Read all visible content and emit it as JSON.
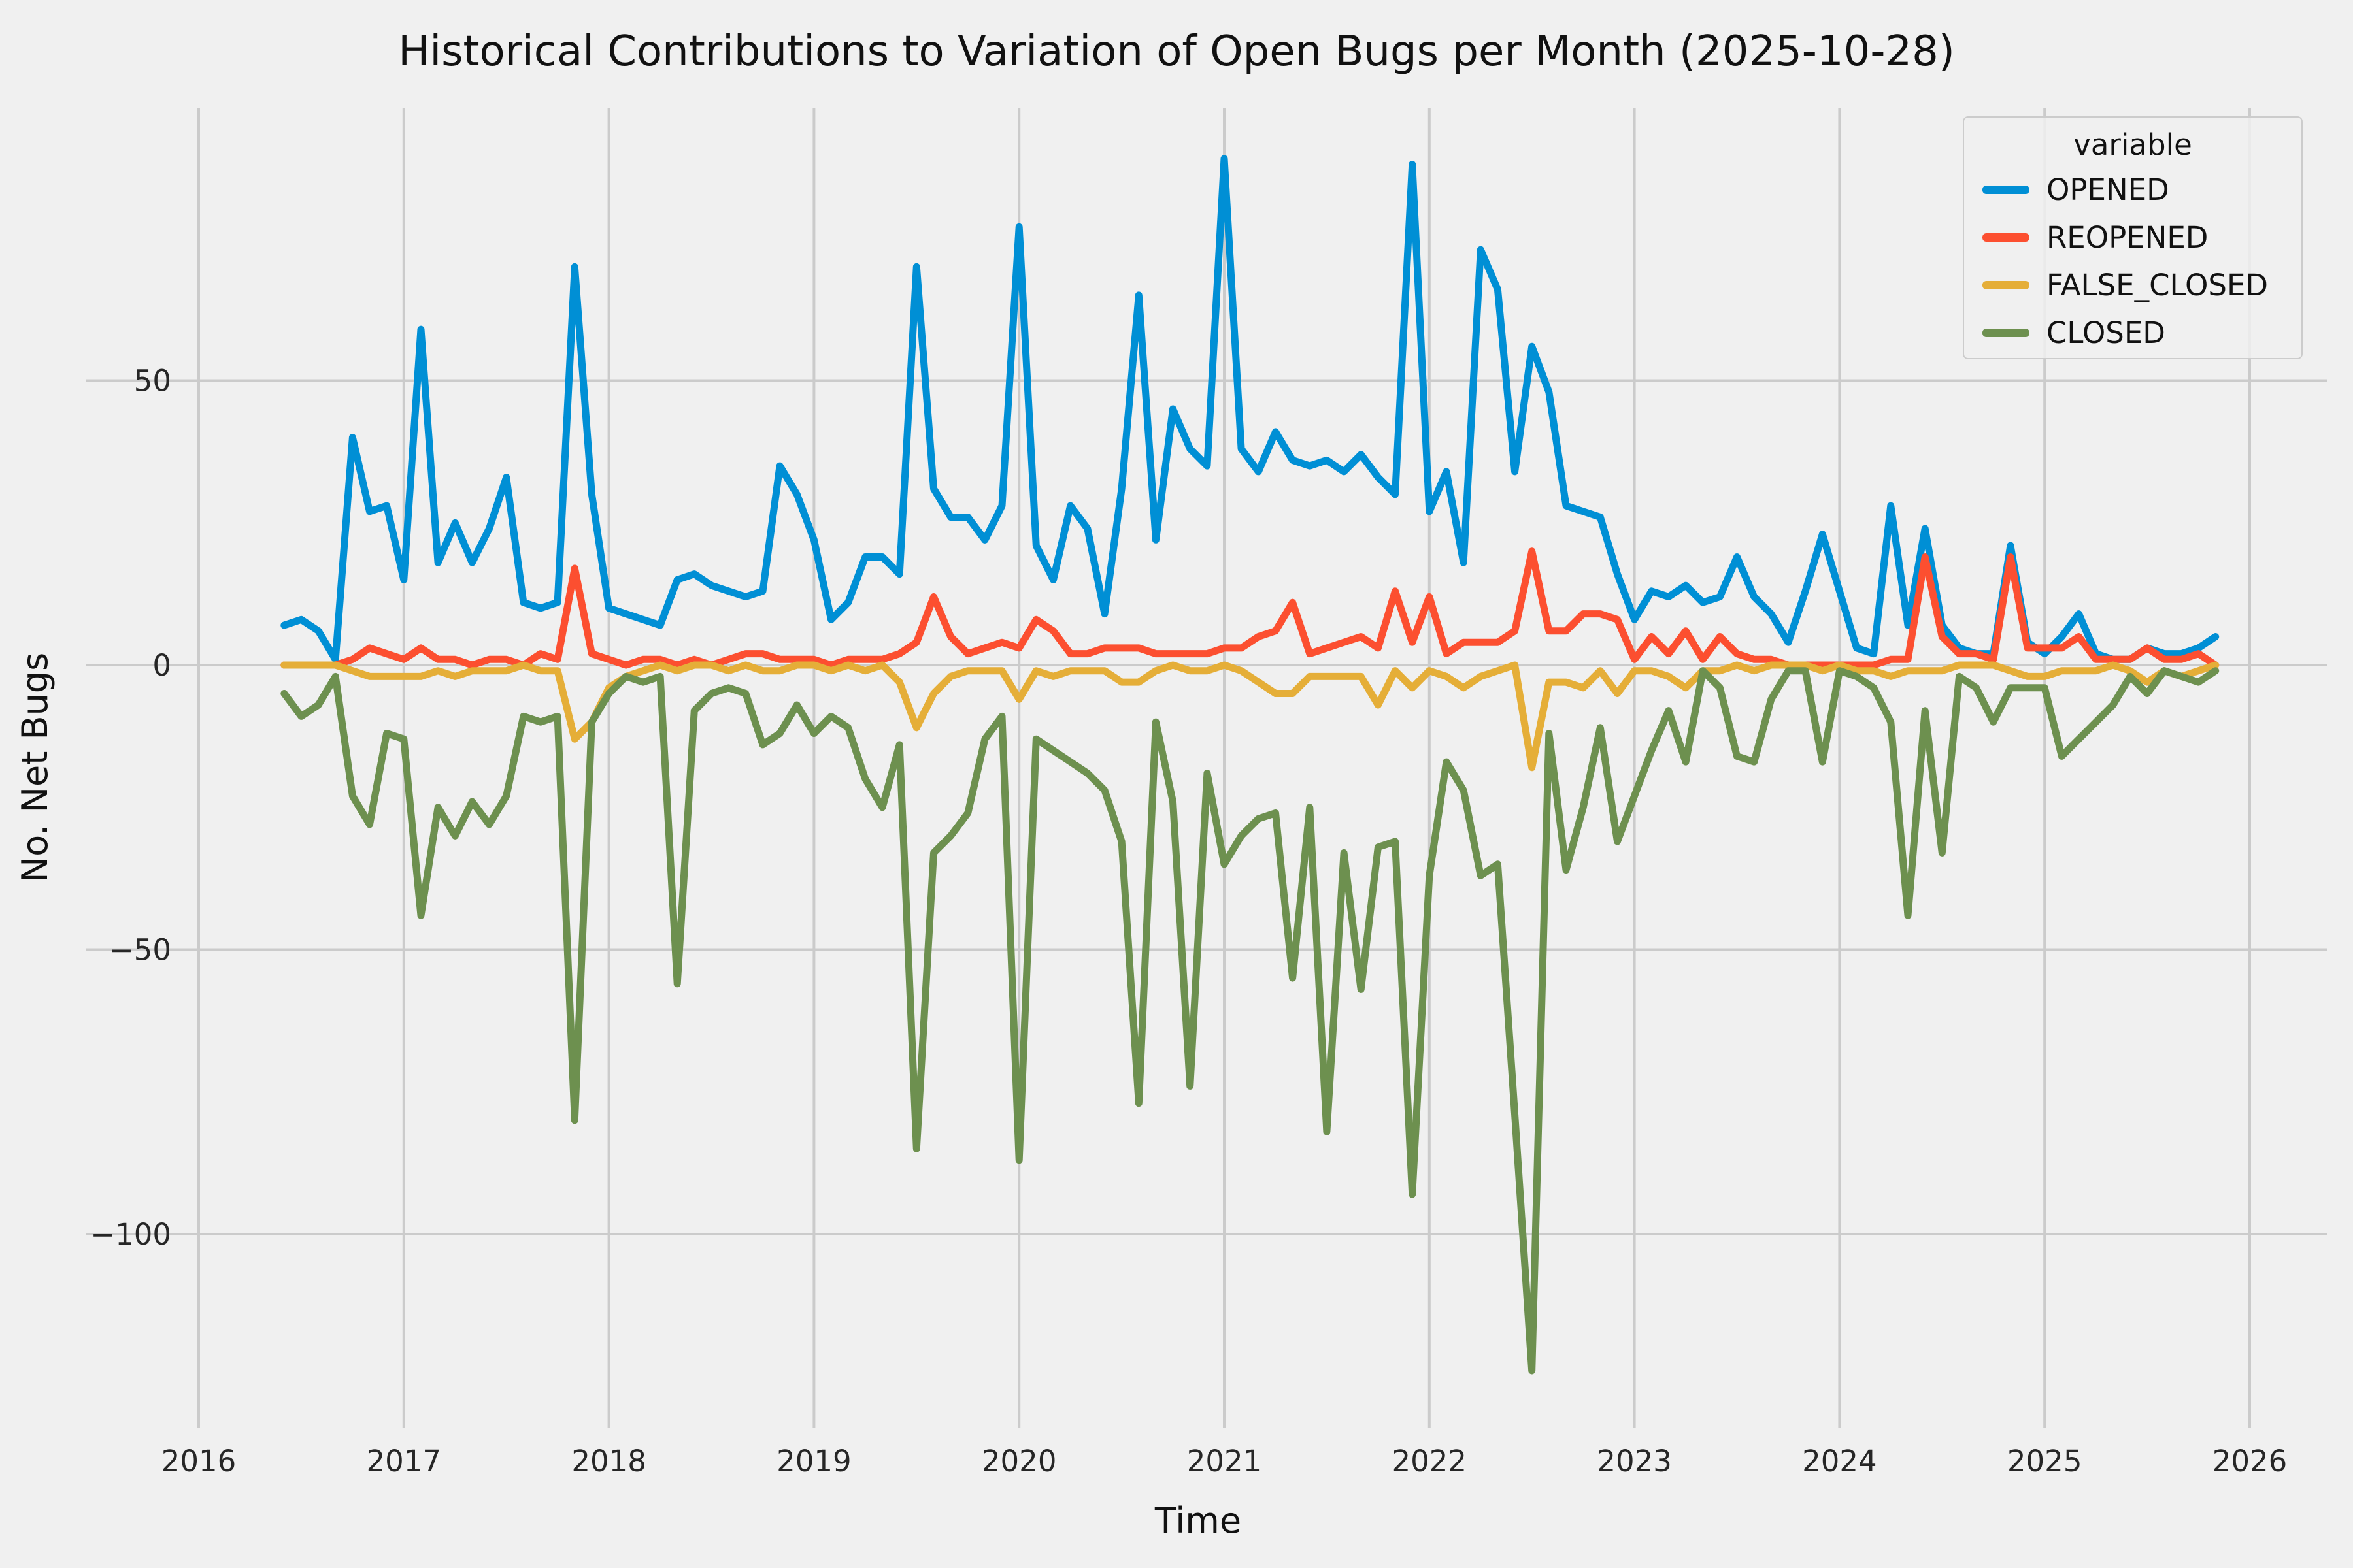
{
  "title": "Historical Contributions to Variation of Open Bugs per Month (2025-10-28)",
  "axes": {
    "xlabel": "Time",
    "ylabel": "No. Net Bugs",
    "x_ticks": [
      2016,
      2017,
      2018,
      2019,
      2020,
      2021,
      2022,
      2023,
      2024,
      2025,
      2026
    ],
    "y_ticks": [
      {
        "v": 50,
        "label": "50"
      },
      {
        "v": 0,
        "label": "0"
      },
      {
        "v": -50,
        "label": "−50"
      },
      {
        "v": -100,
        "label": "−100"
      }
    ],
    "grid": true,
    "background": "#f0f0f0",
    "grid_color": "#cbcbcb"
  },
  "legend": {
    "title": "variable",
    "entries": [
      {
        "label": "OPENED",
        "color": "#008fd5"
      },
      {
        "label": "REOPENED",
        "color": "#fc4f30"
      },
      {
        "label": "FALSE_CLOSED",
        "color": "#e5ae38"
      },
      {
        "label": "CLOSED",
        "color": "#6d904f"
      }
    ],
    "position": "top-right"
  },
  "chart_data": {
    "type": "line",
    "title": "Historical Contributions to Variation of Open Bugs per Month (2025-10-28)",
    "xlabel": "Time",
    "ylabel": "No. Net Bugs",
    "xlim_years": [
      2015.45,
      2026.37
    ],
    "ylim": [
      -134,
      98
    ],
    "x": [
      "2016-06",
      "2016-07",
      "2016-08",
      "2016-09",
      "2016-10",
      "2016-11",
      "2016-12",
      "2017-01",
      "2017-02",
      "2017-03",
      "2017-04",
      "2017-05",
      "2017-06",
      "2017-07",
      "2017-08",
      "2017-09",
      "2017-10",
      "2017-11",
      "2017-12",
      "2018-01",
      "2018-02",
      "2018-03",
      "2018-04",
      "2018-05",
      "2018-06",
      "2018-07",
      "2018-08",
      "2018-09",
      "2018-10",
      "2018-11",
      "2018-12",
      "2019-01",
      "2019-02",
      "2019-03",
      "2019-04",
      "2019-05",
      "2019-06",
      "2019-07",
      "2019-08",
      "2019-09",
      "2019-10",
      "2019-11",
      "2019-12",
      "2020-01",
      "2020-02",
      "2020-03",
      "2020-04",
      "2020-05",
      "2020-06",
      "2020-07",
      "2020-08",
      "2020-09",
      "2020-10",
      "2020-11",
      "2020-12",
      "2021-01",
      "2021-02",
      "2021-03",
      "2021-04",
      "2021-05",
      "2021-06",
      "2021-07",
      "2021-08",
      "2021-09",
      "2021-10",
      "2021-11",
      "2021-12",
      "2022-01",
      "2022-02",
      "2022-03",
      "2022-04",
      "2022-05",
      "2022-06",
      "2022-07",
      "2022-08",
      "2022-09",
      "2022-10",
      "2022-11",
      "2022-12",
      "2023-01",
      "2023-02",
      "2023-03",
      "2023-04",
      "2023-05",
      "2023-06",
      "2023-07",
      "2023-08",
      "2023-09",
      "2023-10",
      "2023-11",
      "2023-12",
      "2024-01",
      "2024-02",
      "2024-03",
      "2024-04",
      "2024-05",
      "2024-06",
      "2024-07",
      "2024-08",
      "2024-09",
      "2024-10",
      "2024-11",
      "2024-12",
      "2025-01",
      "2025-02",
      "2025-03",
      "2025-04",
      "2025-05",
      "2025-06",
      "2025-07",
      "2025-08",
      "2025-09",
      "2025-10",
      "2025-11"
    ],
    "series": [
      {
        "name": "OPENED",
        "color": "#008fd5",
        "values": [
          7,
          8,
          6,
          1,
          40,
          27,
          28,
          15,
          59,
          18,
          25,
          18,
          24,
          33,
          11,
          10,
          11,
          70,
          30,
          10,
          9,
          8,
          7,
          15,
          16,
          14,
          13,
          12,
          13,
          35,
          30,
          22,
          8,
          11,
          19,
          19,
          16,
          70,
          31,
          26,
          26,
          22,
          28,
          77,
          21,
          15,
          28,
          24,
          9,
          31,
          65,
          22,
          45,
          38,
          35,
          89,
          38,
          34,
          41,
          36,
          35,
          36,
          34,
          37,
          33,
          30,
          88,
          27,
          34,
          18,
          73,
          66,
          34,
          56,
          48,
          28,
          27,
          26,
          16,
          8,
          13,
          12,
          14,
          11,
          12,
          19,
          12,
          9,
          4,
          13,
          23,
          13,
          3,
          2,
          28,
          7,
          24,
          7,
          3,
          2,
          2,
          21,
          4,
          2,
          5,
          9,
          2,
          1,
          1,
          3,
          2,
          2,
          3,
          5
        ]
      },
      {
        "name": "REOPENED",
        "color": "#fc4f30",
        "values": [
          0,
          0,
          0,
          0,
          1,
          3,
          2,
          1,
          3,
          1,
          1,
          0,
          1,
          1,
          0,
          2,
          1,
          17,
          2,
          1,
          0,
          1,
          1,
          0,
          1,
          0,
          1,
          2,
          2,
          1,
          1,
          1,
          0,
          1,
          1,
          1,
          2,
          4,
          12,
          5,
          2,
          3,
          4,
          3,
          8,
          6,
          2,
          2,
          3,
          3,
          3,
          2,
          2,
          2,
          2,
          3,
          3,
          5,
          6,
          11,
          2,
          3,
          4,
          5,
          3,
          13,
          4,
          12,
          2,
          4,
          4,
          4,
          6,
          20,
          6,
          6,
          9,
          9,
          8,
          1,
          5,
          2,
          6,
          1,
          5,
          2,
          1,
          1,
          0,
          0,
          0,
          0,
          0,
          0,
          1,
          1,
          19,
          5,
          2,
          2,
          1,
          19,
          3,
          3,
          3,
          5,
          1,
          1,
          1,
          3,
          1,
          1,
          2,
          0
        ]
      },
      {
        "name": "FALSE_CLOSED",
        "color": "#e5ae38",
        "values": [
          0,
          0,
          0,
          0,
          -1,
          -2,
          -2,
          -2,
          -2,
          -1,
          -2,
          -1,
          -1,
          -1,
          0,
          -1,
          -1,
          -13,
          -10,
          -4,
          -2,
          -1,
          0,
          -1,
          0,
          0,
          -1,
          0,
          -1,
          -1,
          0,
          0,
          -1,
          0,
          -1,
          0,
          -3,
          -11,
          -5,
          -2,
          -1,
          -1,
          -1,
          -6,
          -1,
          -2,
          -1,
          -1,
          -1,
          -3,
          -3,
          -1,
          0,
          -1,
          -1,
          0,
          -1,
          -3,
          -5,
          -5,
          -2,
          -2,
          -2,
          -2,
          -7,
          -1,
          -4,
          -1,
          -2,
          -4,
          -2,
          -1,
          0,
          -18,
          -3,
          -3,
          -4,
          -1,
          -5,
          -1,
          -1,
          -2,
          -4,
          -1,
          -1,
          0,
          -1,
          0,
          0,
          0,
          -1,
          0,
          -1,
          -1,
          -2,
          -1,
          -1,
          -1,
          0,
          0,
          0,
          -1,
          -2,
          -2,
          -1,
          -1,
          -1,
          0,
          -1,
          -3,
          -1,
          -2,
          -1,
          0
        ]
      },
      {
        "name": "CLOSED",
        "color": "#6d904f",
        "values": [
          -5,
          -9,
          -7,
          -2,
          -23,
          -28,
          -12,
          -13,
          -44,
          -25,
          -30,
          -24,
          -28,
          -23,
          -9,
          -10,
          -9,
          -80,
          -10,
          -5,
          -2,
          -3,
          -2,
          -56,
          -8,
          -5,
          -4,
          -5,
          -14,
          -12,
          -7,
          -12,
          -9,
          -11,
          -20,
          -25,
          -14,
          -85,
          -33,
          -30,
          -26,
          -13,
          -9,
          -87,
          -13,
          -15,
          -17,
          -19,
          -22,
          -31,
          -77,
          -10,
          -24,
          -74,
          -19,
          -35,
          -30,
          -27,
          -26,
          -55,
          -25,
          -82,
          -33,
          -57,
          -32,
          -31,
          -93,
          -37,
          -17,
          -22,
          -37,
          -35,
          -79,
          -124,
          -12,
          -36,
          -25,
          -11,
          -31,
          -23,
          -15,
          -8,
          -17,
          -1,
          -4,
          -16,
          -17,
          -6,
          -1,
          -1,
          -17,
          -1,
          -2,
          -4,
          -10,
          -44,
          -8,
          -33,
          -2,
          -4,
          -10,
          -4,
          -4,
          -4,
          -16,
          -13,
          -10,
          -7,
          -2,
          -5,
          -1,
          -2,
          -3,
          -1
        ]
      }
    ]
  }
}
